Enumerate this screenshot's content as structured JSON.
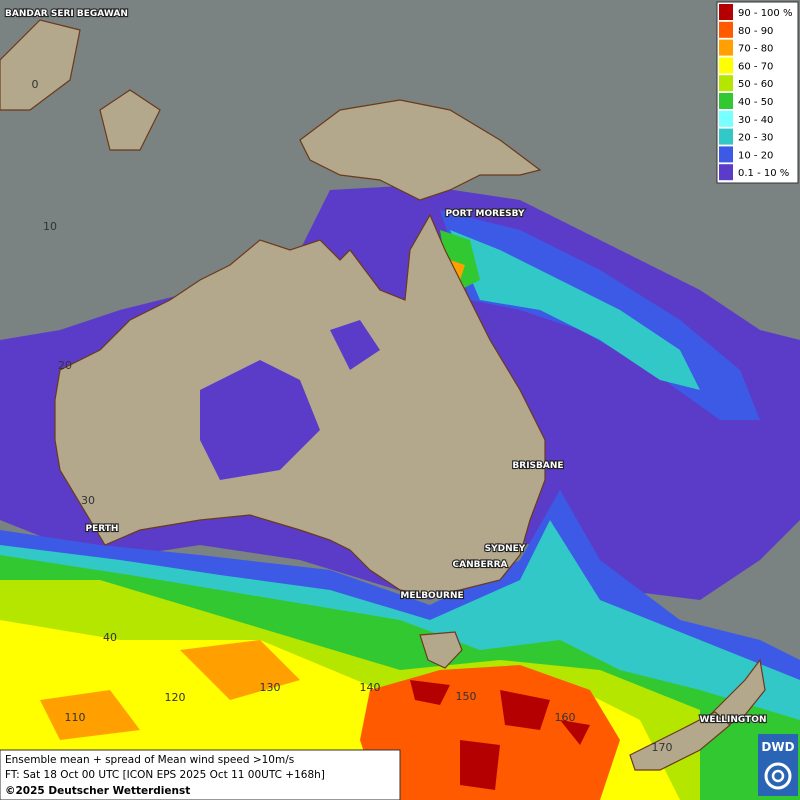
{
  "legend": {
    "items": [
      {
        "label": "90 - 100 %",
        "color": "#b40000"
      },
      {
        "label": "80 - 90",
        "color": "#ff5a00"
      },
      {
        "label": "70 - 80",
        "color": "#ffa000"
      },
      {
        "label": "60 - 70",
        "color": "#ffff00"
      },
      {
        "label": "50 - 60",
        "color": "#b4e600"
      },
      {
        "label": "40 - 50",
        "color": "#32c832"
      },
      {
        "label": "30 - 40",
        "color": "#78ffff"
      },
      {
        "label": "20 - 30",
        "color": "#32c8c8"
      },
      {
        "label": "10 - 20",
        "color": "#3c5ae6"
      },
      {
        "label": "0.1 - 10 %",
        "color": "#5a3cc8"
      }
    ]
  },
  "places": [
    "BANDAR SERI BEGAWAN",
    "PORT MORESBY",
    "BRISBANE",
    "SYDNEY",
    "CANBERRA",
    "MELBOURNE",
    "PERTH",
    "WELLINGTON"
  ],
  "grid_labels": [
    "0",
    "10",
    "20",
    "30",
    "40",
    "110",
    "120",
    "130",
    "140",
    "150",
    "160",
    "170"
  ],
  "footer": {
    "line1": "Ensemble mean + spread of Mean wind speed >10m/s",
    "line2": "FT: Sat 18 Oct 00 UTC [ICON EPS 2025 Oct 11 00UTC +168h]",
    "line3": "©2025 Deutscher Wetterdienst"
  },
  "logo": "DWD"
}
